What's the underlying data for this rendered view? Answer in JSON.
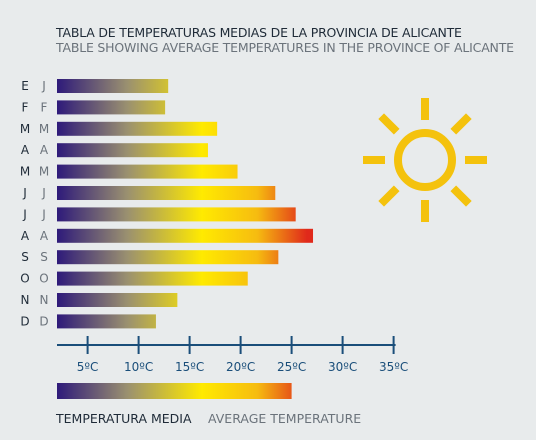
{
  "title_es": "TABLA DE TEMPERATURAS MEDIAS DE LA PROVINCIA DE ALICANTE",
  "title_en": "TABLE SHOWING AVERAGE TEMPERATURES IN THE PROVINCE OF ALICANTE",
  "legend": {
    "label_es": "TEMPERATURA MEDIA",
    "label_en": "AVERAGE TEMPERATURE"
  },
  "icon": "sun-icon",
  "colors": {
    "background": "#e8ebec",
    "axis": "#1a4e7a",
    "gradient": [
      "#2e1a7a",
      "#9a9070",
      "#ffea00",
      "#f6bc10",
      "#e0291b"
    ],
    "sun": "#f4c20d"
  },
  "chart_data": {
    "type": "bar",
    "orientation": "horizontal",
    "categories_es": [
      "E",
      "F",
      "M",
      "A",
      "M",
      "J",
      "J",
      "A",
      "S",
      "O",
      "N",
      "D"
    ],
    "categories_en": [
      "J",
      "F",
      "M",
      "A",
      "M",
      "J",
      "J",
      "A",
      "S",
      "O",
      "N",
      "D"
    ],
    "values": [
      12.9,
      12.6,
      17.7,
      16.8,
      19.7,
      23.4,
      25.4,
      27.1,
      23.7,
      20.7,
      13.8,
      11.7
    ],
    "unit": "°C",
    "xlim": [
      2,
      35
    ],
    "ticks": [
      5,
      10,
      15,
      20,
      25,
      30,
      35
    ],
    "tick_labels": [
      "5ºC",
      "10ºC",
      "15ºC",
      "20ºC",
      "25ºC",
      "30ºC",
      "35ºC"
    ],
    "legend_bar_max": 25,
    "grid": false
  }
}
